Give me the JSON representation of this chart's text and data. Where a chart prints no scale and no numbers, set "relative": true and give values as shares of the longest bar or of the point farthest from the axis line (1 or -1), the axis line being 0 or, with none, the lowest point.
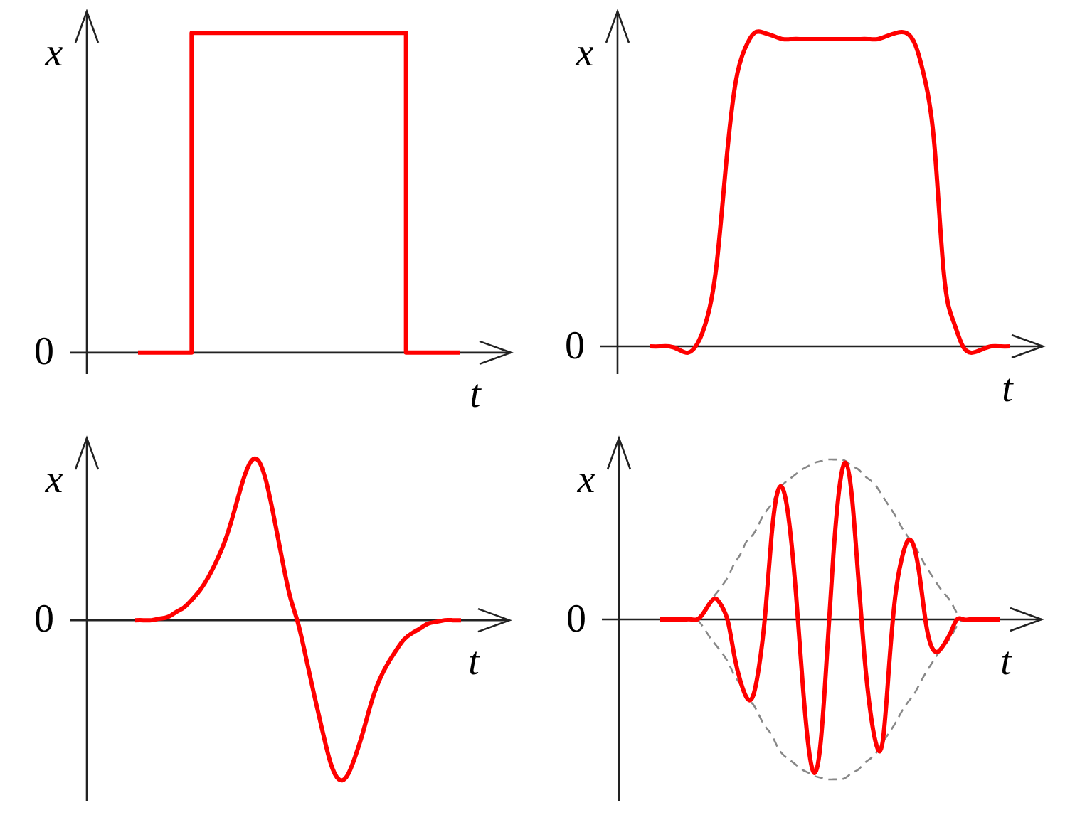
{
  "chart_data": [
    {
      "type": "step",
      "relative": true,
      "xlabel": "t",
      "ylabel": "x",
      "categories": [
        null,
        null,
        null,
        null,
        null,
        null,
        null
      ],
      "series": [
        {
          "color": "#ff0000",
          "values": [
            0,
            1,
            1,
            1,
            1,
            0,
            0
          ]
        }
      ],
      "annotations": [
        "0"
      ]
    },
    {
      "type": "line",
      "relative": true,
      "xlabel": "t",
      "ylabel": "x",
      "categories": [
        null,
        null,
        null,
        null,
        null,
        null,
        null,
        null,
        null,
        null,
        null,
        null,
        null,
        null,
        null,
        null,
        null,
        null,
        null,
        null,
        null,
        null,
        null,
        null,
        null,
        null,
        null,
        null,
        null,
        null,
        null,
        null,
        null,
        null,
        null,
        null,
        null,
        null,
        null
      ],
      "series": [
        {
          "color": "#ff0000",
          "values": [
            0,
            0,
            0,
            -0.01,
            -0.02,
            0.01,
            0.09,
            0.26,
            0.58,
            0.84,
            0.95,
            1,
            1,
            0.99,
            0.98,
            0.98,
            0.98,
            0.98,
            0.98,
            0.98,
            0.98,
            0.98,
            0.98,
            0.98,
            0.98,
            0.99,
            1,
            1,
            0.96,
            0.85,
            0.64,
            0.23,
            0.08,
            0,
            -0.02,
            -0.01,
            0,
            0,
            0
          ]
        }
      ],
      "annotations": [
        "0"
      ]
    },
    {
      "type": "line",
      "relative": true,
      "xlabel": "t",
      "ylabel": "x",
      "categories": [
        null,
        null,
        null,
        null,
        null,
        null,
        null,
        null,
        null,
        null,
        null,
        null,
        null,
        null,
        null,
        null,
        null,
        null,
        null,
        null,
        null,
        null,
        null,
        null,
        null,
        null,
        null,
        null,
        null,
        null,
        null,
        null,
        null,
        null,
        null,
        null,
        null,
        null,
        null,
        null,
        null
      ],
      "series": [
        {
          "color": "#ff0000",
          "values": [
            0,
            0,
            0,
            0.01,
            0.02,
            0.05,
            0.08,
            0.13,
            0.19,
            0.27,
            0.37,
            0.49,
            0.65,
            0.83,
            0.97,
            1,
            0.88,
            0.65,
            0.39,
            0.15,
            -0.02,
            -0.24,
            -0.47,
            -0.69,
            -0.89,
            -0.99,
            -0.97,
            -0.85,
            -0.69,
            -0.51,
            -0.37,
            -0.27,
            -0.19,
            -0.12,
            -0.08,
            -0.05,
            -0.02,
            -0.01,
            0,
            0,
            0
          ]
        }
      ],
      "annotations": [
        "0"
      ]
    },
    {
      "type": "line",
      "relative": true,
      "xlabel": "t",
      "ylabel": "x",
      "categories": [
        null,
        null,
        null,
        null,
        null,
        null,
        null,
        null,
        null,
        null,
        null,
        null,
        null,
        null,
        null,
        null,
        null,
        null,
        null,
        null,
        null,
        null,
        null,
        null,
        null,
        null,
        null,
        null,
        null,
        null,
        null,
        null,
        null,
        null,
        null,
        null,
        null,
        null,
        null,
        null,
        null,
        null,
        null,
        null,
        null,
        null,
        null,
        null,
        null,
        null,
        null,
        null,
        null,
        null,
        null,
        null
      ],
      "series": [
        {
          "color": "#888888",
          "line_style": "dashed",
          "values": [
            null,
            null,
            null,
            null,
            null,
            null,
            0,
            0.05,
            0.11,
            0.16,
            0.21,
            0.27,
            0.35,
            0.41,
            0.49,
            0.53,
            0.6,
            0.67,
            0.72,
            0.8,
            0.85,
            0.88,
            0.91,
            0.94,
            0.96,
            0.98,
            0.99,
            1,
            1,
            1,
            0.99,
            0.96,
            0.94,
            0.9,
            0.87,
            0.83,
            0.77,
            0.71,
            0.65,
            0.58,
            0.52,
            0.47,
            0.4,
            0.33,
            0.27,
            0.21,
            0.16,
            0.11,
            0.04,
            0,
            null,
            null,
            null,
            null,
            null,
            null
          ]
        },
        {
          "color": "#888888",
          "line_style": "dashed",
          "values": [
            null,
            null,
            null,
            null,
            null,
            null,
            0,
            -0.05,
            -0.11,
            -0.16,
            -0.21,
            -0.27,
            -0.35,
            -0.41,
            -0.49,
            -0.53,
            -0.6,
            -0.67,
            -0.72,
            -0.8,
            -0.85,
            -0.88,
            -0.91,
            -0.94,
            -0.96,
            -0.98,
            -0.99,
            -1,
            -1,
            -1,
            -0.99,
            -0.96,
            -0.94,
            -0.9,
            -0.87,
            -0.83,
            -0.77,
            -0.71,
            -0.65,
            -0.58,
            -0.52,
            -0.47,
            -0.4,
            -0.33,
            -0.27,
            -0.21,
            -0.16,
            -0.11,
            -0.04,
            0,
            null,
            null,
            null,
            null,
            null,
            null
          ]
        },
        {
          "color": "#ff0000",
          "values": [
            0,
            0,
            0,
            0,
            0,
            0,
            0,
            0.04,
            0.1,
            0.13,
            0.08,
            -0.02,
            -0.23,
            -0.39,
            -0.49,
            -0.48,
            -0.29,
            0.04,
            0.52,
            0.8,
            0.8,
            0.56,
            0.14,
            -0.38,
            -0.8,
            -0.96,
            -0.75,
            -0.2,
            0.4,
            0.83,
            0.98,
            0.77,
            0.28,
            -0.22,
            -0.58,
            -0.79,
            -0.76,
            -0.3,
            0.14,
            0.37,
            0.49,
            0.46,
            0.26,
            -0.03,
            -0.18,
            -0.2,
            -0.15,
            -0.08,
            0,
            0,
            0,
            0,
            0,
            0,
            0,
            0
          ]
        }
      ],
      "annotations": [
        "0"
      ]
    }
  ]
}
